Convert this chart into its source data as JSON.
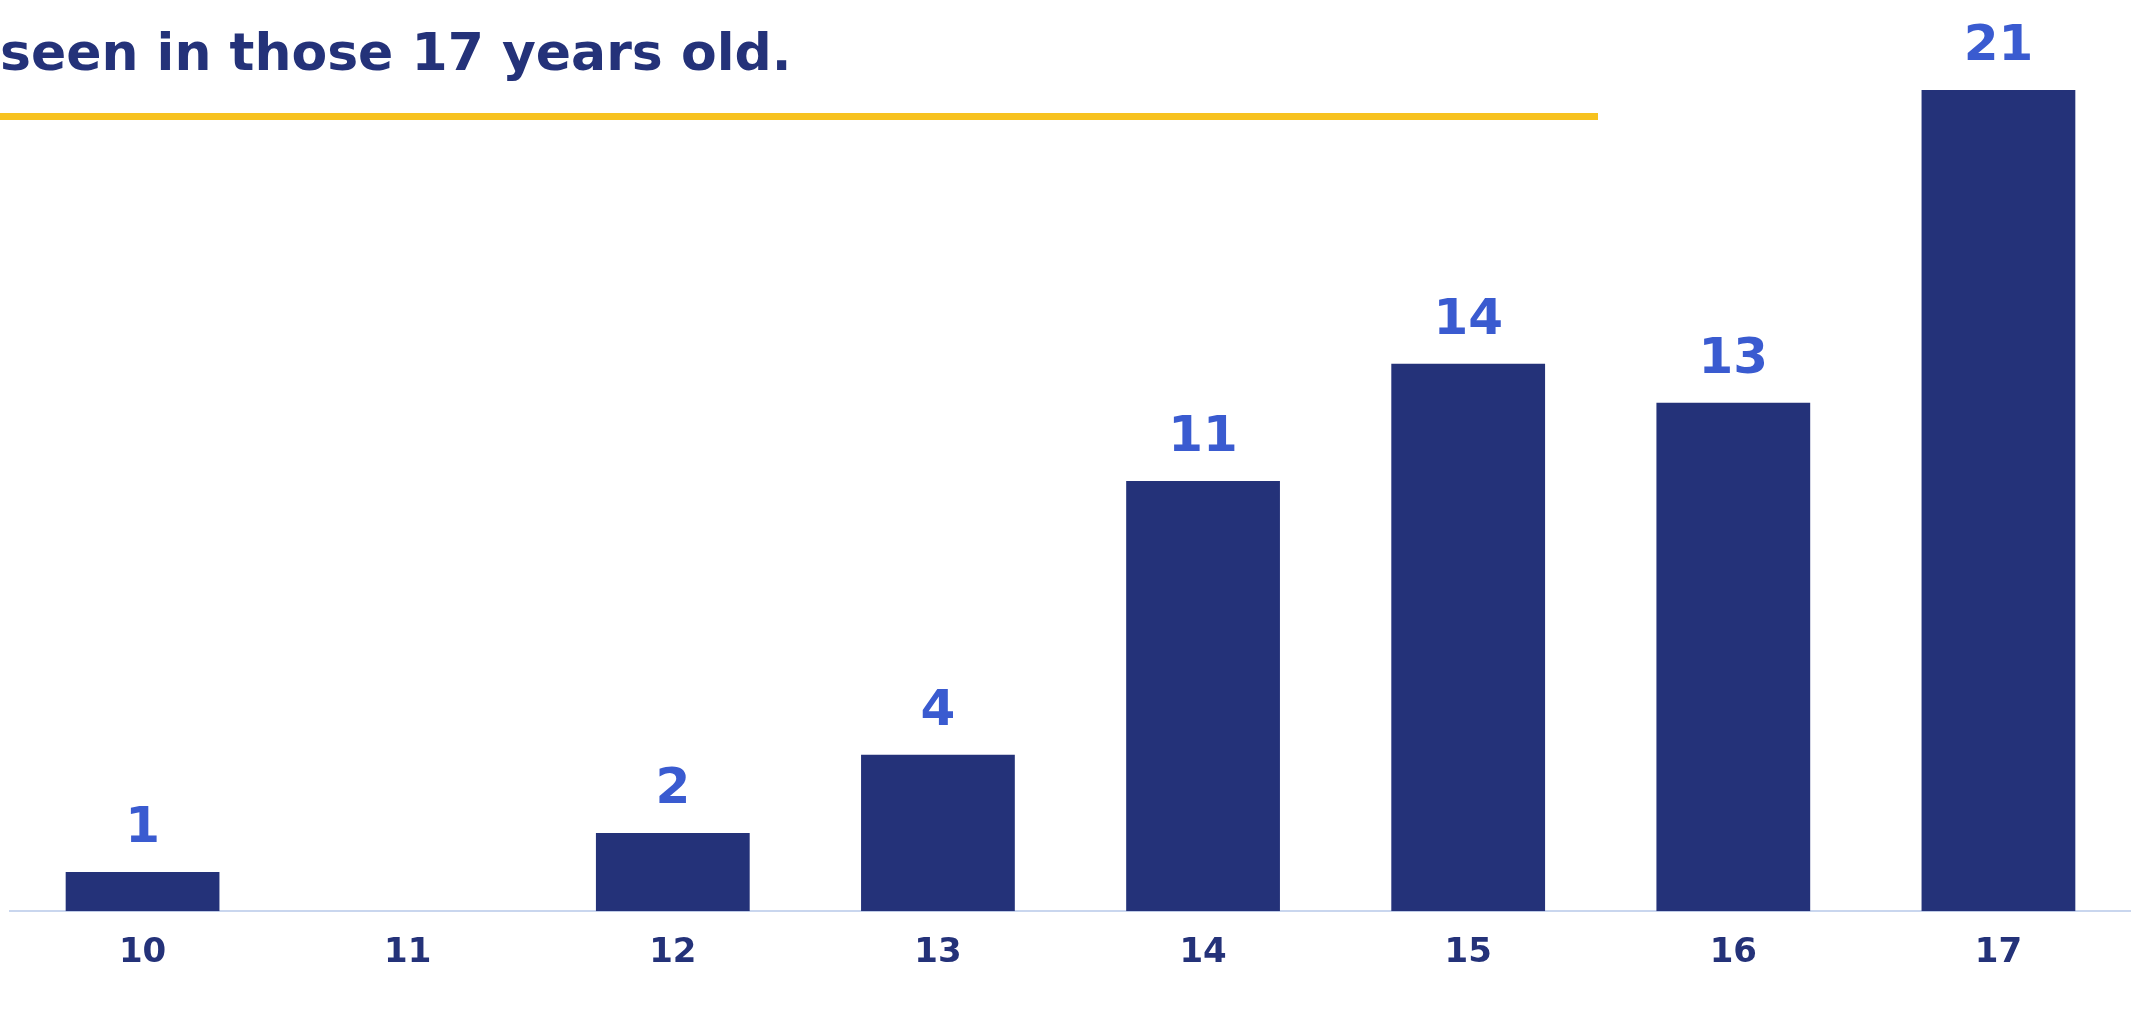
{
  "chart_data": {
    "type": "bar",
    "title": "seen in those 17 years old.",
    "categories": [
      "10",
      "11",
      "12",
      "13",
      "14",
      "15",
      "16",
      "17"
    ],
    "values": [
      1,
      0,
      2,
      4,
      11,
      14,
      13,
      21
    ],
    "color": "#243279",
    "value_labels": [
      "1",
      null,
      "2",
      "4",
      "11",
      "14",
      "13",
      "21"
    ],
    "ylim": [
      0,
      21
    ],
    "grid": false,
    "legend": false,
    "tick_labels": "x"
  }
}
